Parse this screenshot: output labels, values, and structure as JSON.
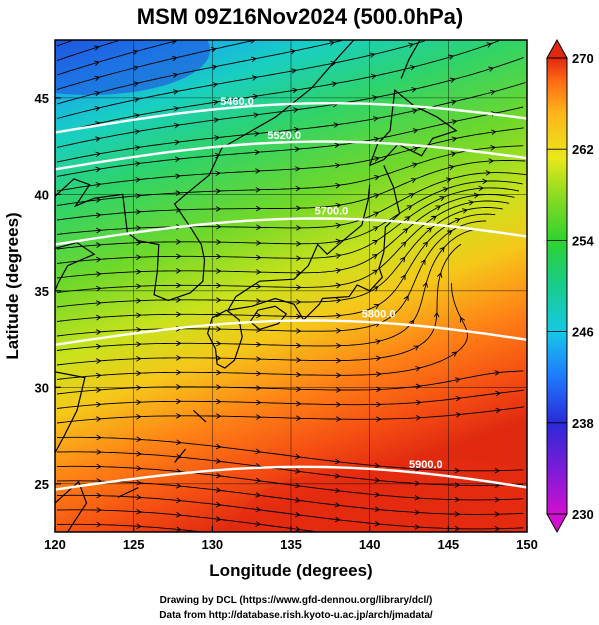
{
  "title": "MSM 09Z16Nov2024 (500.0hPa)",
  "x_axis": {
    "label": "Longitude (degrees)",
    "range": [
      120,
      150
    ],
    "ticks": [
      "120",
      "125",
      "130",
      "135",
      "140",
      "145",
      "150"
    ]
  },
  "y_axis": {
    "label": "Latitude  (degrees)",
    "range": [
      22.5,
      48
    ],
    "ticks": [
      "25",
      "30",
      "35",
      "40",
      "45"
    ]
  },
  "colorbar": {
    "range": [
      230,
      270
    ],
    "ticks": [
      "230",
      "238",
      "246",
      "254",
      "262",
      "270"
    ],
    "colors": [
      "#d20fd0",
      "#2a2ad8",
      "#1f78ff",
      "#16c8e6",
      "#18cc8c",
      "#2ed32e",
      "#8edb22",
      "#e8e81a",
      "#ffb41a",
      "#ff6a14",
      "#e02810"
    ]
  },
  "contours": [
    {
      "label": "5460.0",
      "lat": 43.2
    },
    {
      "label": "5520.0",
      "lat": 41.3
    },
    {
      "label": "5700.0",
      "lat": 37.4
    },
    {
      "label": "5800.0",
      "lat": 32.2
    },
    {
      "label": "5900.0",
      "lat": 24.7
    }
  ],
  "grid": true,
  "credits": [
    "Drawing by DCL (https://www.gfd-dennou.org/library/dcl/)",
    "Data from http://database.rish.kyoto-u.ac.jp/arch/jmadata/"
  ]
}
